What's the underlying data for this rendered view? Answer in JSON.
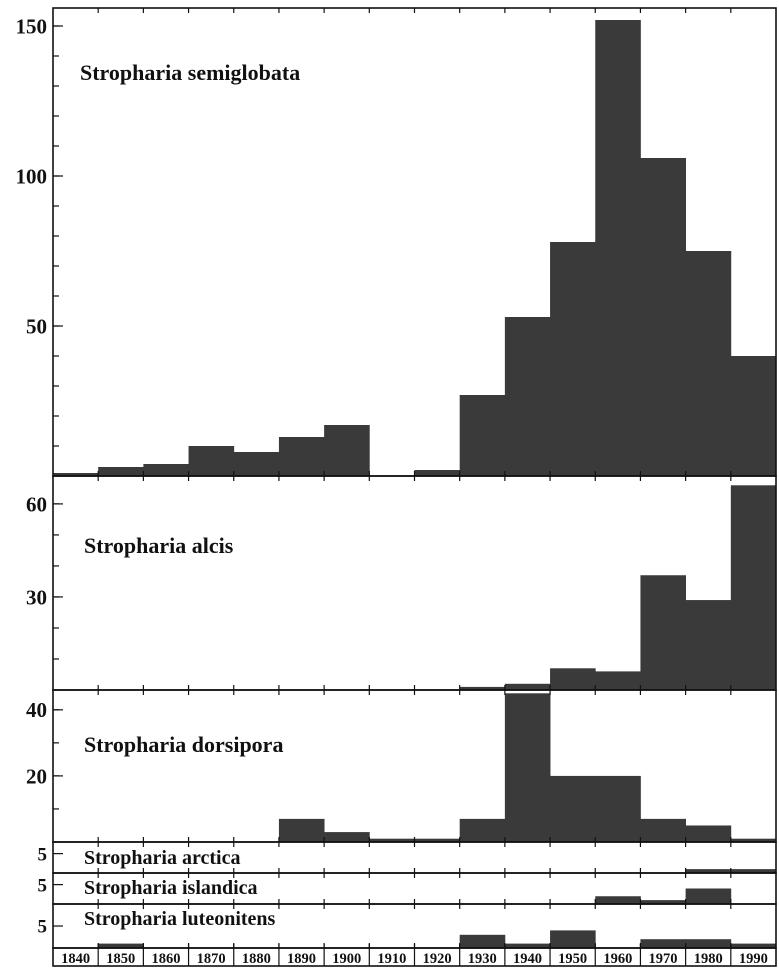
{
  "chart_data": [
    {
      "type": "bar",
      "title": "Stropharia semiglobata",
      "categories": [
        "1840",
        "1850",
        "1860",
        "1870",
        "1880",
        "1890",
        "1900",
        "1910",
        "1920",
        "1930",
        "1940",
        "1950",
        "1960",
        "1970",
        "1980",
        "1990"
      ],
      "values": [
        1,
        3,
        4,
        10,
        8,
        13,
        17,
        0,
        2,
        27,
        53,
        78,
        152,
        106,
        75,
        40
      ],
      "yticks": [
        50,
        100,
        150
      ],
      "ylim": [
        0,
        156
      ]
    },
    {
      "type": "bar",
      "title": "Stropharia alcis",
      "categories": [
        "1840",
        "1850",
        "1860",
        "1870",
        "1880",
        "1890",
        "1900",
        "1910",
        "1920",
        "1930",
        "1940",
        "1950",
        "1960",
        "1970",
        "1980",
        "1990"
      ],
      "values": [
        0,
        0,
        0,
        0,
        0,
        0,
        0,
        0,
        0,
        1,
        2,
        7,
        6,
        37,
        29,
        66
      ],
      "yticks": [
        30,
        60
      ],
      "ylim": [
        0,
        69
      ]
    },
    {
      "type": "bar",
      "title": "Stropharia dorsipora",
      "categories": [
        "1840",
        "1850",
        "1860",
        "1870",
        "1880",
        "1890",
        "1900",
        "1910",
        "1920",
        "1930",
        "1940",
        "1950",
        "1960",
        "1970",
        "1980",
        "1990"
      ],
      "values": [
        0,
        0,
        0,
        0,
        0,
        7,
        3,
        1,
        1,
        7,
        45,
        20,
        20,
        7,
        5,
        1
      ],
      "yticks": [
        20,
        40
      ],
      "ylim": [
        0,
        46
      ]
    },
    {
      "type": "bar",
      "title": "Stropharia arctica",
      "categories": [
        "1840",
        "1850",
        "1860",
        "1870",
        "1880",
        "1890",
        "1900",
        "1910",
        "1920",
        "1930",
        "1940",
        "1950",
        "1960",
        "1970",
        "1980",
        "1990"
      ],
      "values": [
        0,
        0,
        0,
        0,
        0,
        0,
        0,
        0,
        0,
        0,
        0,
        0,
        0,
        0,
        1,
        1
      ],
      "yticks": [
        5
      ],
      "ylim": [
        0,
        8
      ]
    },
    {
      "type": "bar",
      "title": "Stropharia islandica",
      "categories": [
        "1840",
        "1850",
        "1860",
        "1870",
        "1880",
        "1890",
        "1900",
        "1910",
        "1920",
        "1930",
        "1940",
        "1950",
        "1960",
        "1970",
        "1980",
        "1990"
      ],
      "values": [
        0,
        0,
        0,
        0,
        0,
        0,
        0,
        0,
        0,
        0,
        0,
        0,
        2,
        1,
        4,
        0
      ],
      "yticks": [
        5
      ],
      "ylim": [
        0,
        8
      ]
    },
    {
      "type": "bar",
      "title": "Stropharia luteonitens",
      "categories": [
        "1840",
        "1850",
        "1860",
        "1870",
        "1880",
        "1890",
        "1900",
        "1910",
        "1920",
        "1930",
        "1940",
        "1950",
        "1960",
        "1970",
        "1980",
        "1990"
      ],
      "values": [
        0,
        1,
        0,
        0,
        0,
        0,
        0,
        0,
        0,
        3,
        1,
        4,
        0,
        2,
        2,
        1
      ],
      "yticks": [
        5
      ],
      "ylim": [
        0,
        10
      ]
    }
  ],
  "colors": {
    "bar": "#3a3a3a",
    "frame": "#111111",
    "background": "#ffffff"
  }
}
